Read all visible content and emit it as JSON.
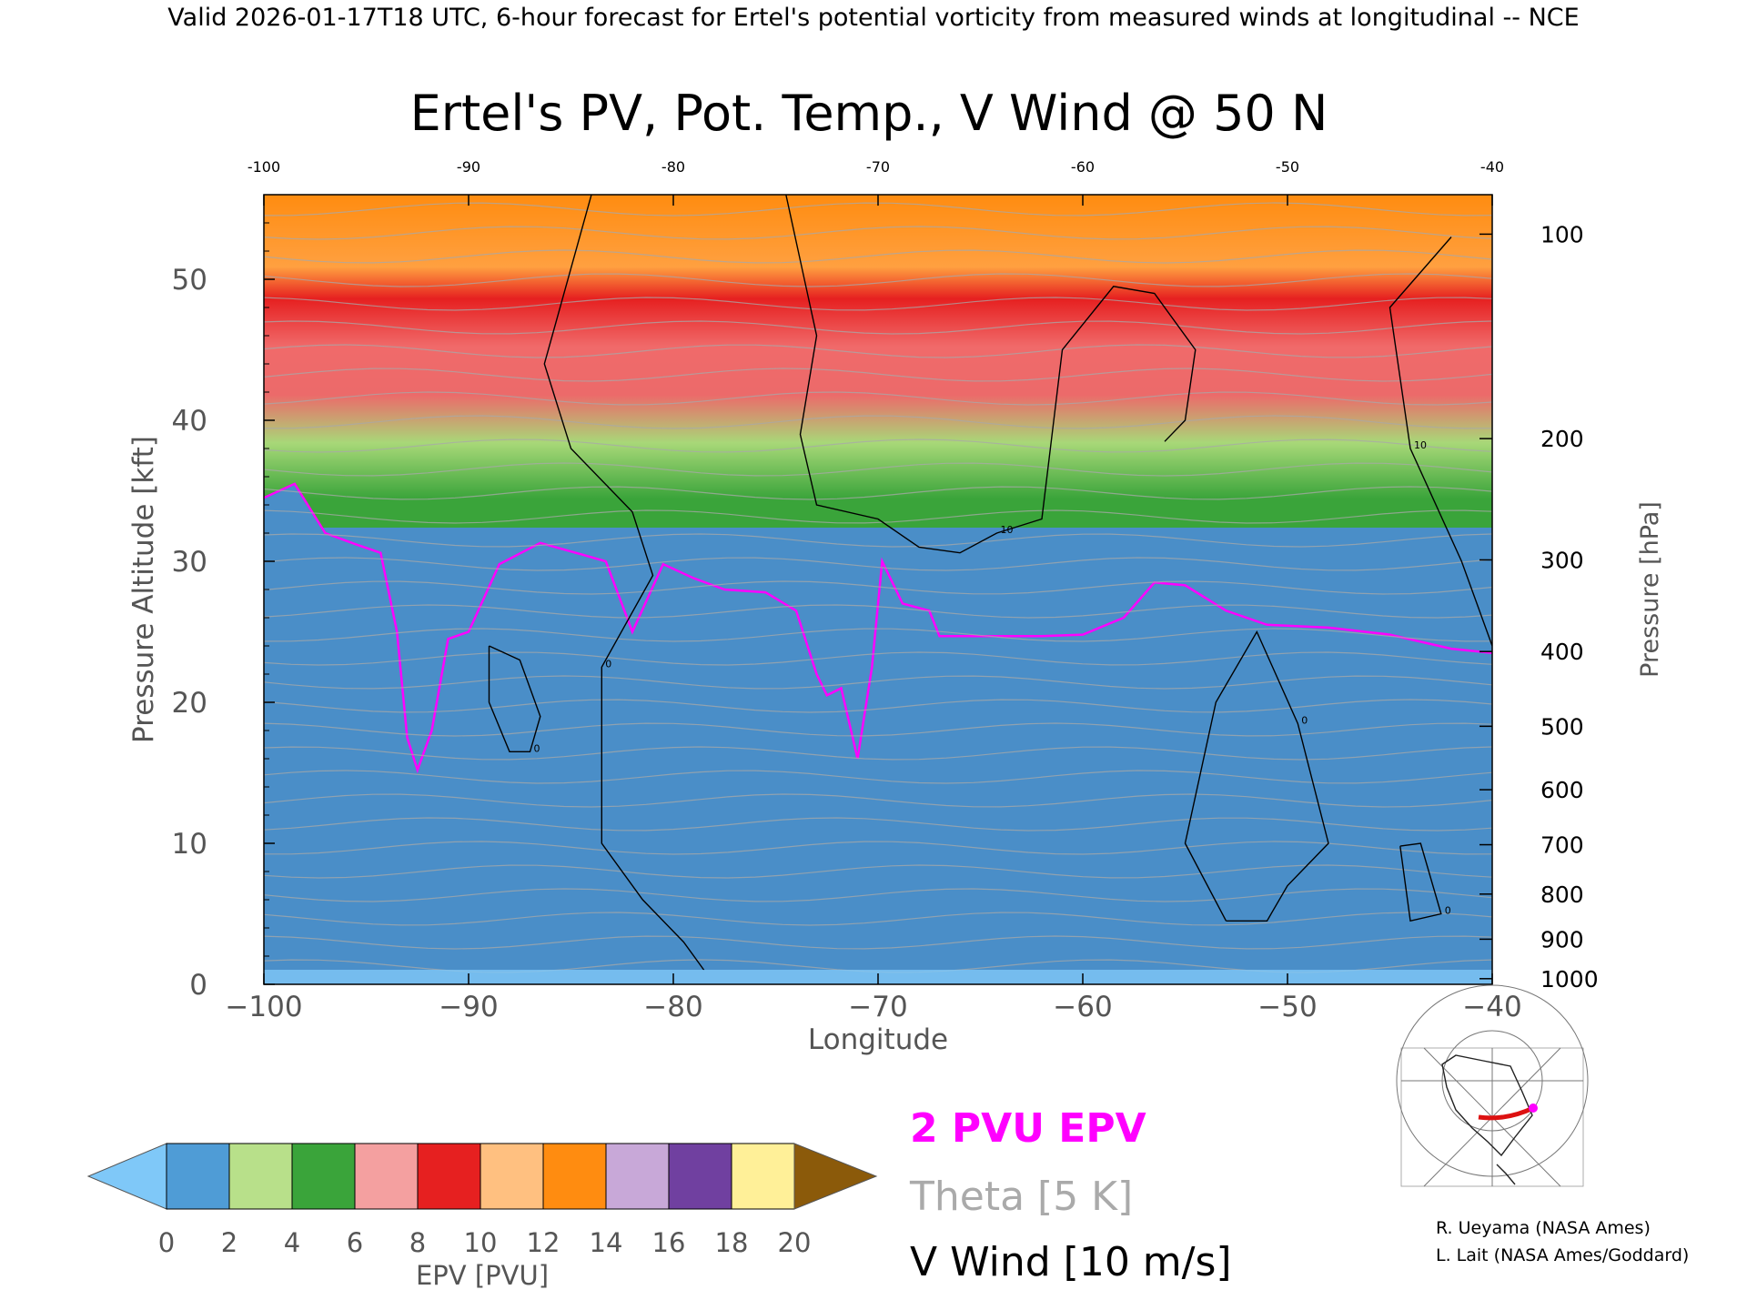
{
  "header": "Valid 2026-01-17T18 UTC, 6-hour forecast for Ertel's potential vorticity from measured winds at longitudinal -- NCE",
  "chart_data": {
    "type": "heatmap",
    "title": "Ertel's PV, Pot. Temp., V Wind @ 50 N",
    "xlabel": "Longitude",
    "ylabel": "Pressure Altitude [kft]",
    "y2label": "Pressure [hPa]",
    "xlim": [
      -100,
      -40
    ],
    "ylim": [
      0,
      56
    ],
    "x_ticks": [
      -100,
      -90,
      -80,
      -70,
      -60,
      -50,
      -40
    ],
    "x_tick_labels": [
      "−100",
      "−90",
      "−80",
      "−70",
      "−60",
      "−50",
      "−40"
    ],
    "top_x_tick_labels": [
      "-100",
      "-90",
      "-80",
      "-70",
      "-60",
      "-50",
      "-40"
    ],
    "y_ticks": [
      0,
      10,
      20,
      30,
      40,
      50
    ],
    "y_tick_labels": [
      "0",
      "10",
      "20",
      "30",
      "40",
      "50"
    ],
    "pressure_ticks": [
      {
        "label": "100",
        "kft": 53.2
      },
      {
        "label": "200",
        "kft": 38.7
      },
      {
        "label": "300",
        "kft": 30.1
      },
      {
        "label": "400",
        "kft": 23.6
      },
      {
        "label": "500",
        "kft": 18.3
      },
      {
        "label": "600",
        "kft": 13.8
      },
      {
        "label": "700",
        "kft": 9.9
      },
      {
        "label": "800",
        "kft": 6.4
      },
      {
        "label": "900",
        "kft": 3.2
      },
      {
        "label": "1000",
        "kft": 0.4
      }
    ],
    "pv2_boundary": [
      [
        -100,
        34.5
      ],
      [
        -98.5,
        35.5
      ],
      [
        -97,
        32.0
      ],
      [
        -95.5,
        31.2
      ],
      [
        -94.3,
        30.6
      ],
      [
        -93.5,
        25.0
      ],
      [
        -93.0,
        17.5
      ],
      [
        -92.5,
        15.2
      ],
      [
        -91.8,
        18.0
      ],
      [
        -91.0,
        24.5
      ],
      [
        -90.0,
        25.0
      ],
      [
        -88.5,
        29.8
      ],
      [
        -86.5,
        31.3
      ],
      [
        -84.5,
        30.5
      ],
      [
        -83.3,
        30.0
      ],
      [
        -82.0,
        25.0
      ],
      [
        -80.5,
        29.8
      ],
      [
        -79.0,
        28.8
      ],
      [
        -77.5,
        28.0
      ],
      [
        -75.5,
        27.8
      ],
      [
        -74.0,
        26.5
      ],
      [
        -73.0,
        22.0
      ],
      [
        -72.5,
        20.5
      ],
      [
        -71.8,
        21.0
      ],
      [
        -71.0,
        16.0
      ],
      [
        -70.3,
        22.5
      ],
      [
        -69.8,
        30.0
      ],
      [
        -68.8,
        27.0
      ],
      [
        -67.5,
        26.5
      ],
      [
        -67.0,
        24.7
      ],
      [
        -62.0,
        24.7
      ],
      [
        -60.0,
        24.8
      ],
      [
        -58.0,
        26.0
      ],
      [
        -56.5,
        28.5
      ],
      [
        -55.0,
        28.3
      ],
      [
        -53.0,
        26.5
      ],
      [
        -51.0,
        25.5
      ],
      [
        -48.0,
        25.3
      ],
      [
        -45.0,
        24.8
      ],
      [
        -42.0,
        23.8
      ],
      [
        -40.0,
        23.5
      ]
    ],
    "vwind_contours": [
      {
        "label": "0",
        "points": [
          [
            -84.0,
            56
          ],
          [
            -86.3,
            44
          ],
          [
            -85.0,
            38
          ],
          [
            -82.0,
            33.5
          ],
          [
            -81.0,
            29
          ],
          [
            -83.5,
            22.5
          ],
          [
            -83.5,
            10
          ],
          [
            -81.5,
            6
          ],
          [
            -79.5,
            3
          ],
          [
            -78.5,
            1
          ]
        ]
      },
      {
        "label": "10",
        "points": [
          [
            -74.5,
            56
          ],
          [
            -73.0,
            46
          ],
          [
            -73.8,
            39
          ],
          [
            -73.0,
            34
          ],
          [
            -70.0,
            33
          ],
          [
            -68.0,
            31
          ],
          [
            -66.0,
            30.6
          ],
          [
            -64.2,
            32
          ],
          [
            -62.0,
            33
          ],
          [
            -61.0,
            45
          ],
          [
            -58.5,
            49.5
          ],
          [
            -56.5,
            49
          ],
          [
            -54.5,
            45
          ],
          [
            -55.0,
            40
          ],
          [
            -56.0,
            38.5
          ]
        ]
      },
      {
        "label": "0",
        "points": [
          [
            -53.0,
            4.5
          ],
          [
            -55.0,
            10
          ],
          [
            -53.5,
            20
          ],
          [
            -51.5,
            25
          ],
          [
            -49.5,
            18.5
          ],
          [
            -48.0,
            10
          ],
          [
            -50.0,
            7
          ],
          [
            -51.0,
            4.5
          ],
          [
            -53.0,
            4.5
          ]
        ]
      },
      {
        "label": "0",
        "points": [
          [
            -89.0,
            24
          ],
          [
            -87.5,
            23
          ],
          [
            -86.5,
            19
          ],
          [
            -87.0,
            16.5
          ],
          [
            -88.0,
            16.5
          ],
          [
            -89.0,
            20
          ],
          [
            -89.0,
            24
          ]
        ]
      },
      {
        "label": "0",
        "points": [
          [
            -44.5,
            9.8
          ],
          [
            -43.5,
            10
          ],
          [
            -42.5,
            5
          ],
          [
            -44.0,
            4.5
          ],
          [
            -44.5,
            9.8
          ]
        ]
      },
      {
        "label": "10",
        "points": [
          [
            -42.0,
            53
          ],
          [
            -45.0,
            48
          ],
          [
            -44.0,
            38
          ],
          [
            -41.5,
            30
          ],
          [
            -40.0,
            24
          ]
        ]
      }
    ],
    "series": [
      {
        "name": "2 PVU EPV",
        "color": "#ff00ff"
      },
      {
        "name": "Theta [5 K]",
        "color": "#a8a8a8"
      },
      {
        "name": "V Wind [10 m/s]",
        "color": "#000000"
      }
    ],
    "colorbar": {
      "label": "EPV [PVU]",
      "ticks": [
        "0",
        "2",
        "4",
        "6",
        "8",
        "10",
        "12",
        "14",
        "16",
        "18",
        "20"
      ],
      "colors": [
        "#7fc8f8",
        "#4f9cd6",
        "#b8e08a",
        "#3aa43a",
        "#f4a0a0",
        "#e62020",
        "#ffc080",
        "#ff8c10",
        "#c8a8d8",
        "#7040a0",
        "#fff098",
        "#8b5a0a"
      ]
    }
  },
  "legend": {
    "pv2": "2 PVU EPV",
    "theta": "Theta [5 K]",
    "vwind": "V Wind [10 m/s]"
  },
  "credits": {
    "line1": "R. Ueyama (NASA Ames)",
    "line2": "L. Lait (NASA Ames/Goddard)"
  }
}
